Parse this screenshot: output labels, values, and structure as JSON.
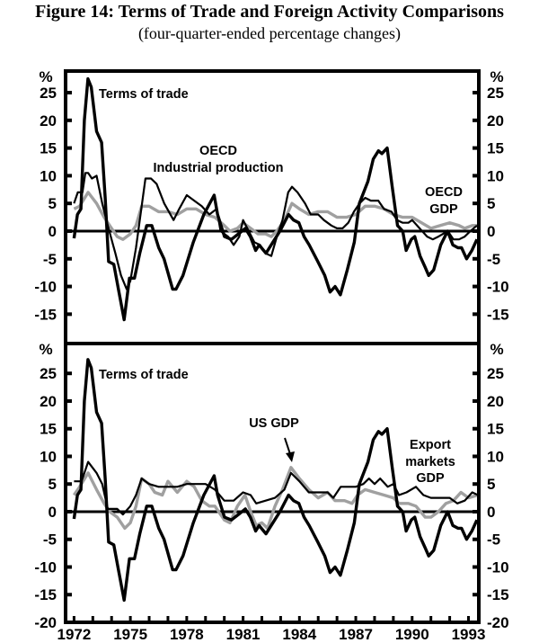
{
  "title": "Figure 14: Terms of Trade and Foreign Activity Comparisons",
  "subtitle": "(four-quarter-ended percentage changes)",
  "colors": {
    "terms_of_trade": "#000000",
    "activity": "#000000",
    "gdp": "#a0a0a0"
  },
  "chart_data": [
    {
      "type": "line",
      "panel": "top",
      "ylabel": "%",
      "ylim": [
        -20.3,
        28.9
      ],
      "yticks": [
        -15,
        -10,
        -5,
        0,
        5,
        10,
        15,
        20,
        25
      ],
      "xlim": [
        1971.55,
        1993.55
      ],
      "grid": false,
      "annotations": [
        {
          "text": "Terms of trade",
          "series": "Terms of trade"
        },
        {
          "text": "OECD",
          "series": "OECD Industrial production"
        },
        {
          "text": "Industrial production",
          "series": "OECD Industrial production"
        },
        {
          "text": "OECD",
          "series": "OECD GDP"
        },
        {
          "text": "GDP",
          "series": "OECD GDP"
        }
      ],
      "series": [
        {
          "name": "Terms of trade",
          "style": "thick-black",
          "x": [
            1972.0,
            1972.18,
            1972.37,
            1972.55,
            1972.74,
            1972.92,
            1973.2,
            1973.47,
            1973.66,
            1973.84,
            1974.12,
            1974.39,
            1974.67,
            1974.95,
            1975.22,
            1975.5,
            1975.87,
            1976.14,
            1976.51,
            1976.79,
            1977.25,
            1977.43,
            1977.8,
            1978.35,
            1978.91,
            1979.46,
            1979.64,
            1980.01,
            1980.38,
            1980.75,
            1981.12,
            1981.39,
            1981.67,
            1981.85,
            1982.22,
            1982.59,
            1982.96,
            1983.42,
            1983.69,
            1983.97,
            1984.25,
            1984.52,
            1984.98,
            1985.35,
            1985.63,
            1985.9,
            1986.18,
            1986.55,
            1986.92,
            1987.19,
            1987.65,
            1987.93,
            1988.21,
            1988.39,
            1988.67,
            1988.94,
            1989.22,
            1989.5,
            1989.68,
            1989.96,
            1990.14,
            1990.42,
            1990.69,
            1990.88,
            1991.15,
            1991.52,
            1991.89,
            1992.17,
            1992.44,
            1992.63,
            1992.9,
            1993.18,
            1993.45
          ],
          "y": [
            -1.3,
            3,
            4,
            20,
            27.5,
            26,
            18,
            16,
            6,
            -5.5,
            -6,
            -11,
            -16,
            -8.5,
            -8.5,
            -4,
            1,
            1,
            -3,
            -5,
            -10.5,
            -10.5,
            -8,
            -2,
            3,
            6.5,
            3,
            -1,
            -1.5,
            -0.5,
            0.5,
            -1,
            -3.5,
            -2.5,
            -4,
            -2,
            0,
            3,
            2,
            1.5,
            -1,
            -2.5,
            -5.5,
            -8,
            -11,
            -10,
            -11.5,
            -7,
            -2,
            5,
            9,
            13,
            14.5,
            14,
            15,
            8,
            1,
            0,
            -3.5,
            -1.5,
            -1,
            -4.5,
            -6.5,
            -8,
            -7,
            -2.5,
            0,
            -2.5,
            -3,
            -3,
            -5,
            -3.5,
            -1.5
          ]
        },
        {
          "name": "OECD Industrial production",
          "style": "thin-black",
          "x": [
            1972.0,
            1972.2,
            1972.45,
            1972.6,
            1972.75,
            1972.95,
            1973.2,
            1973.5,
            1973.8,
            1974.2,
            1974.5,
            1974.8,
            1975.0,
            1975.3,
            1975.5,
            1975.8,
            1976.1,
            1976.4,
            1976.8,
            1977.3,
            1977.6,
            1978.0,
            1978.4,
            1978.8,
            1979.2,
            1979.6,
            1979.8,
            1980.2,
            1980.5,
            1980.8,
            1981.0,
            1981.3,
            1981.6,
            1981.9,
            1982.2,
            1982.5,
            1982.8,
            1983.1,
            1983.4,
            1983.6,
            1983.9,
            1984.3,
            1984.6,
            1985.0,
            1985.3,
            1985.7,
            1986.0,
            1986.3,
            1986.6,
            1986.9,
            1987.2,
            1987.5,
            1987.8,
            1988.2,
            1988.5,
            1988.9,
            1989.2,
            1989.5,
            1989.8,
            1990.0,
            1990.4,
            1990.8,
            1991.1,
            1991.4,
            1991.9,
            1992.2,
            1992.5,
            1992.8,
            1993.1,
            1993.45
          ],
          "y": [
            5,
            7,
            7,
            10.5,
            10.5,
            9.5,
            10,
            5,
            1,
            -4,
            -8,
            -10.5,
            -9,
            -3,
            2,
            9.5,
            9.5,
            8.5,
            5,
            2,
            4,
            6.5,
            5.5,
            4.5,
            3,
            4,
            0,
            -1,
            -2.5,
            -1,
            2,
            0,
            -2,
            -2.5,
            -4,
            -4.5,
            -1,
            2,
            7,
            8,
            7,
            5,
            3,
            3,
            2,
            1,
            0.5,
            0.5,
            1.5,
            3.5,
            5,
            6,
            5.5,
            5.5,
            4,
            3.5,
            2,
            1.5,
            1.5,
            2,
            0.5,
            -1,
            -1.5,
            -1,
            0,
            -1.5,
            -1.5,
            -1,
            0,
            1
          ]
        },
        {
          "name": "OECD GDP",
          "style": "thick-grey",
          "x": [
            1972.0,
            1972.3,
            1972.75,
            1973.2,
            1973.6,
            1974.0,
            1974.3,
            1974.6,
            1975.0,
            1975.3,
            1975.6,
            1976.0,
            1976.5,
            1977.0,
            1977.5,
            1978.0,
            1978.5,
            1979.0,
            1979.5,
            1980.0,
            1980.3,
            1980.7,
            1981.0,
            1981.4,
            1981.8,
            1982.2,
            1982.5,
            1982.8,
            1983.2,
            1983.6,
            1984.0,
            1984.5,
            1985.0,
            1985.5,
            1986.0,
            1986.5,
            1987.0,
            1987.5,
            1988.0,
            1988.5,
            1989.0,
            1989.5,
            1990.0,
            1990.5,
            1991.0,
            1991.5,
            1992.0,
            1992.5,
            1992.8,
            1993.2,
            1993.5
          ],
          "y": [
            4,
            4.5,
            7,
            5,
            2.5,
            0.5,
            -1,
            -1.5,
            -0.5,
            1,
            4.5,
            4.5,
            3.5,
            3.5,
            3,
            4,
            4,
            3,
            2.5,
            1,
            0,
            0.5,
            1.5,
            0.5,
            -0.5,
            -0.5,
            -1,
            0,
            2,
            5,
            4,
            3,
            3.5,
            3.5,
            2.5,
            2.5,
            3,
            4.5,
            4.5,
            4,
            3,
            2.5,
            2.5,
            1.5,
            0.5,
            1,
            1.5,
            1,
            0.5,
            1,
            1
          ]
        }
      ]
    },
    {
      "type": "line",
      "panel": "bottom",
      "ylabel": "%",
      "ylim": [
        -20,
        30.4
      ],
      "yticks": [
        -20,
        -15,
        -10,
        -5,
        0,
        5,
        10,
        15,
        20,
        25
      ],
      "xlim": [
        1971.55,
        1993.55
      ],
      "xticks": [
        1972,
        1975,
        1978,
        1981,
        1984,
        1987,
        1990,
        1993
      ],
      "grid": false,
      "annotations": [
        {
          "text": "Terms of trade",
          "series": "Terms of trade"
        },
        {
          "text": "US GDP",
          "series": "US GDP"
        },
        {
          "text": "Export",
          "series": "Export markets GDP"
        },
        {
          "text": "markets",
          "series": "Export markets GDP"
        },
        {
          "text": "GDP",
          "series": "Export markets GDP"
        }
      ],
      "series": [
        {
          "name": "Terms of trade",
          "style": "thick-black",
          "same_as": "top"
        },
        {
          "name": "US GDP",
          "style": "thin-black",
          "x": [
            1972.0,
            1972.4,
            1972.75,
            1973.2,
            1973.5,
            1973.8,
            1974.3,
            1974.6,
            1975.0,
            1975.3,
            1975.6,
            1976.0,
            1976.5,
            1977.0,
            1977.5,
            1978.0,
            1978.5,
            1979.0,
            1979.5,
            1980.0,
            1980.5,
            1981.0,
            1981.4,
            1981.7,
            1982.2,
            1982.7,
            1983.2,
            1983.55,
            1984.0,
            1984.5,
            1985.0,
            1985.5,
            1985.8,
            1986.2,
            1986.6,
            1987.0,
            1987.4,
            1987.7,
            1988.0,
            1988.3,
            1988.7,
            1989.0,
            1989.3,
            1989.7,
            1990.2,
            1990.6,
            1991.0,
            1991.5,
            1992.0,
            1992.4,
            1992.8,
            1993.2,
            1993.5
          ],
          "y": [
            5.5,
            5.5,
            9,
            7,
            5,
            0.5,
            0.5,
            -0.5,
            1,
            3,
            6,
            5,
            4.5,
            4.5,
            4.5,
            5,
            5,
            5,
            4,
            2,
            2,
            3.5,
            3,
            1.5,
            2,
            2.5,
            4,
            7,
            5.5,
            3.5,
            3.5,
            3.5,
            2.5,
            4.5,
            4.5,
            4.5,
            5,
            6,
            5,
            6,
            4.5,
            5,
            3,
            3.5,
            4.5,
            3,
            2.5,
            2.5,
            2.5,
            1.5,
            2,
            3.5,
            3
          ]
        },
        {
          "name": "Export markets GDP",
          "style": "thick-grey",
          "x": [
            1972.0,
            1972.3,
            1972.75,
            1973.2,
            1973.6,
            1973.9,
            1974.3,
            1974.7,
            1975.0,
            1975.3,
            1975.6,
            1976.0,
            1976.3,
            1976.7,
            1977.0,
            1977.5,
            1978.0,
            1978.4,
            1978.8,
            1979.2,
            1979.5,
            1980.0,
            1980.3,
            1980.7,
            1981.1,
            1981.4,
            1981.7,
            1982.0,
            1982.3,
            1982.7,
            1983.1,
            1983.55,
            1984.0,
            1984.5,
            1985.0,
            1985.5,
            1985.9,
            1986.4,
            1986.8,
            1987.1,
            1987.5,
            1988.0,
            1988.5,
            1989.0,
            1989.3,
            1989.8,
            1990.2,
            1990.7,
            1991.0,
            1991.4,
            1991.8,
            1992.2,
            1992.6,
            1993.0,
            1993.5
          ],
          "y": [
            3,
            4.5,
            7,
            4,
            1.5,
            0,
            -1,
            -3,
            -2,
            1,
            6,
            5,
            3.5,
            3,
            5.5,
            3.5,
            5.5,
            4.5,
            2,
            1,
            1,
            -1.5,
            -2,
            1,
            3,
            0,
            -2.5,
            -2,
            -3,
            1,
            4,
            8,
            6,
            4,
            2.5,
            3.5,
            2,
            2,
            1.5,
            3,
            4,
            3.5,
            3,
            2.5,
            1.5,
            1.5,
            1,
            -1,
            -1,
            0,
            1.5,
            2,
            3.5,
            2.5,
            3
          ]
        }
      ]
    }
  ]
}
